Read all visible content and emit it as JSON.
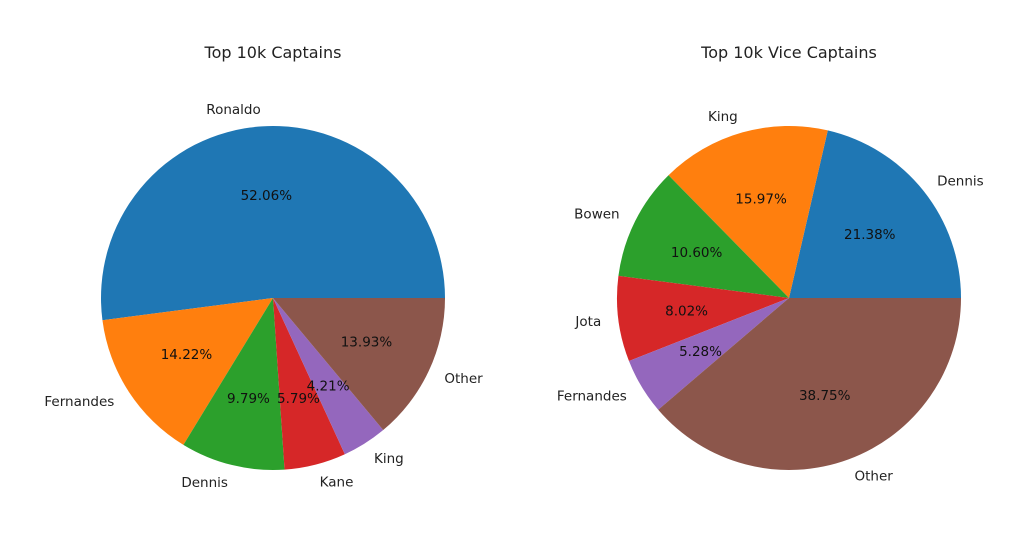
{
  "chart_data": [
    {
      "type": "pie",
      "title": "Top 10k Captains",
      "colors": [
        "#1f77b4",
        "#ff7f0e",
        "#2ca02c",
        "#d62728",
        "#9467bd",
        "#8c564b"
      ],
      "slices": [
        {
          "label": "Ronaldo",
          "value": 52.06,
          "pct_label": "52.06%"
        },
        {
          "label": "Fernandes",
          "value": 14.22,
          "pct_label": "14.22%"
        },
        {
          "label": "Dennis",
          "value": 9.79,
          "pct_label": "9.79%"
        },
        {
          "label": "Kane",
          "value": 5.79,
          "pct_label": "5.79%"
        },
        {
          "label": "King",
          "value": 4.21,
          "pct_label": "4.21%"
        },
        {
          "label": "Other",
          "value": 13.93,
          "pct_label": "13.93%"
        }
      ]
    },
    {
      "type": "pie",
      "title": "Top 10k Vice Captains",
      "colors": [
        "#1f77b4",
        "#ff7f0e",
        "#2ca02c",
        "#d62728",
        "#9467bd",
        "#8c564b"
      ],
      "slices": [
        {
          "label": "Dennis",
          "value": 21.38,
          "pct_label": "21.38%"
        },
        {
          "label": "King",
          "value": 15.97,
          "pct_label": "15.97%"
        },
        {
          "label": "Bowen",
          "value": 10.6,
          "pct_label": "10.60%"
        },
        {
          "label": "Jota",
          "value": 8.02,
          "pct_label": "8.02%"
        },
        {
          "label": "Fernandes",
          "value": 5.28,
          "pct_label": "5.28%"
        },
        {
          "label": "Other",
          "value": 38.75,
          "pct_label": "38.75%"
        }
      ]
    }
  ]
}
